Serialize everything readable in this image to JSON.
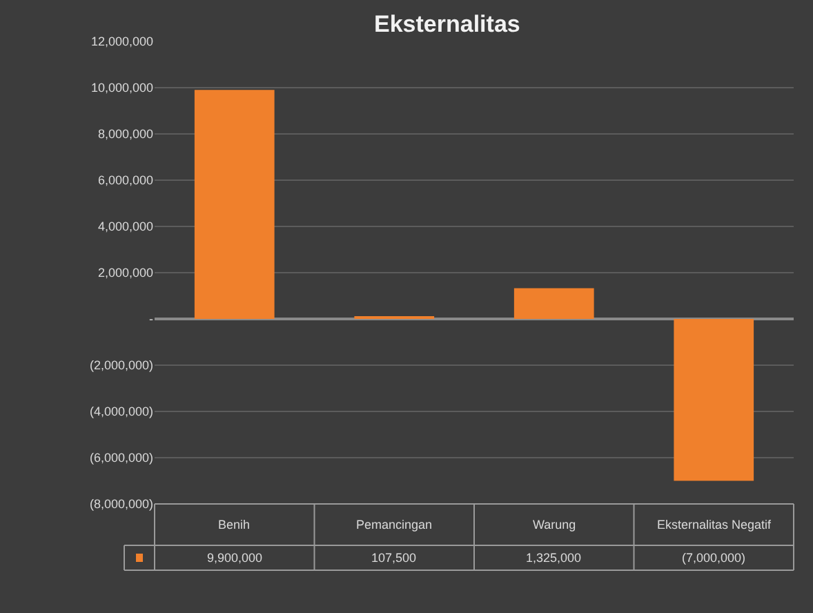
{
  "chart_data": {
    "type": "bar",
    "title": "Eksternalitas",
    "categories": [
      "Benih",
      "Pemancingan",
      "Warung",
      "Eksternalitas Negatif"
    ],
    "values": [
      9900000,
      107500,
      1325000,
      -7000000
    ],
    "value_labels": [
      "9,900,000",
      "107,500",
      "1,325,000",
      "(7,000,000)"
    ],
    "color": "#f0802c",
    "ylim": [
      -8000000,
      12000000
    ],
    "yticks": [
      {
        "value": -8000000,
        "label": "(8,000,000)"
      },
      {
        "value": -6000000,
        "label": "(6,000,000)"
      },
      {
        "value": -4000000,
        "label": "(4,000,000)"
      },
      {
        "value": -2000000,
        "label": "(2,000,000)"
      },
      {
        "value": 0,
        "label": "-"
      },
      {
        "value": 2000000,
        "label": "2,000,000"
      },
      {
        "value": 4000000,
        "label": "4,000,000"
      },
      {
        "value": 6000000,
        "label": "6,000,000"
      },
      {
        "value": 8000000,
        "label": "8,000,000"
      },
      {
        "value": 10000000,
        "label": "10,000,000"
      },
      {
        "value": 12000000,
        "label": "12,000,000"
      }
    ],
    "grid": "y"
  }
}
